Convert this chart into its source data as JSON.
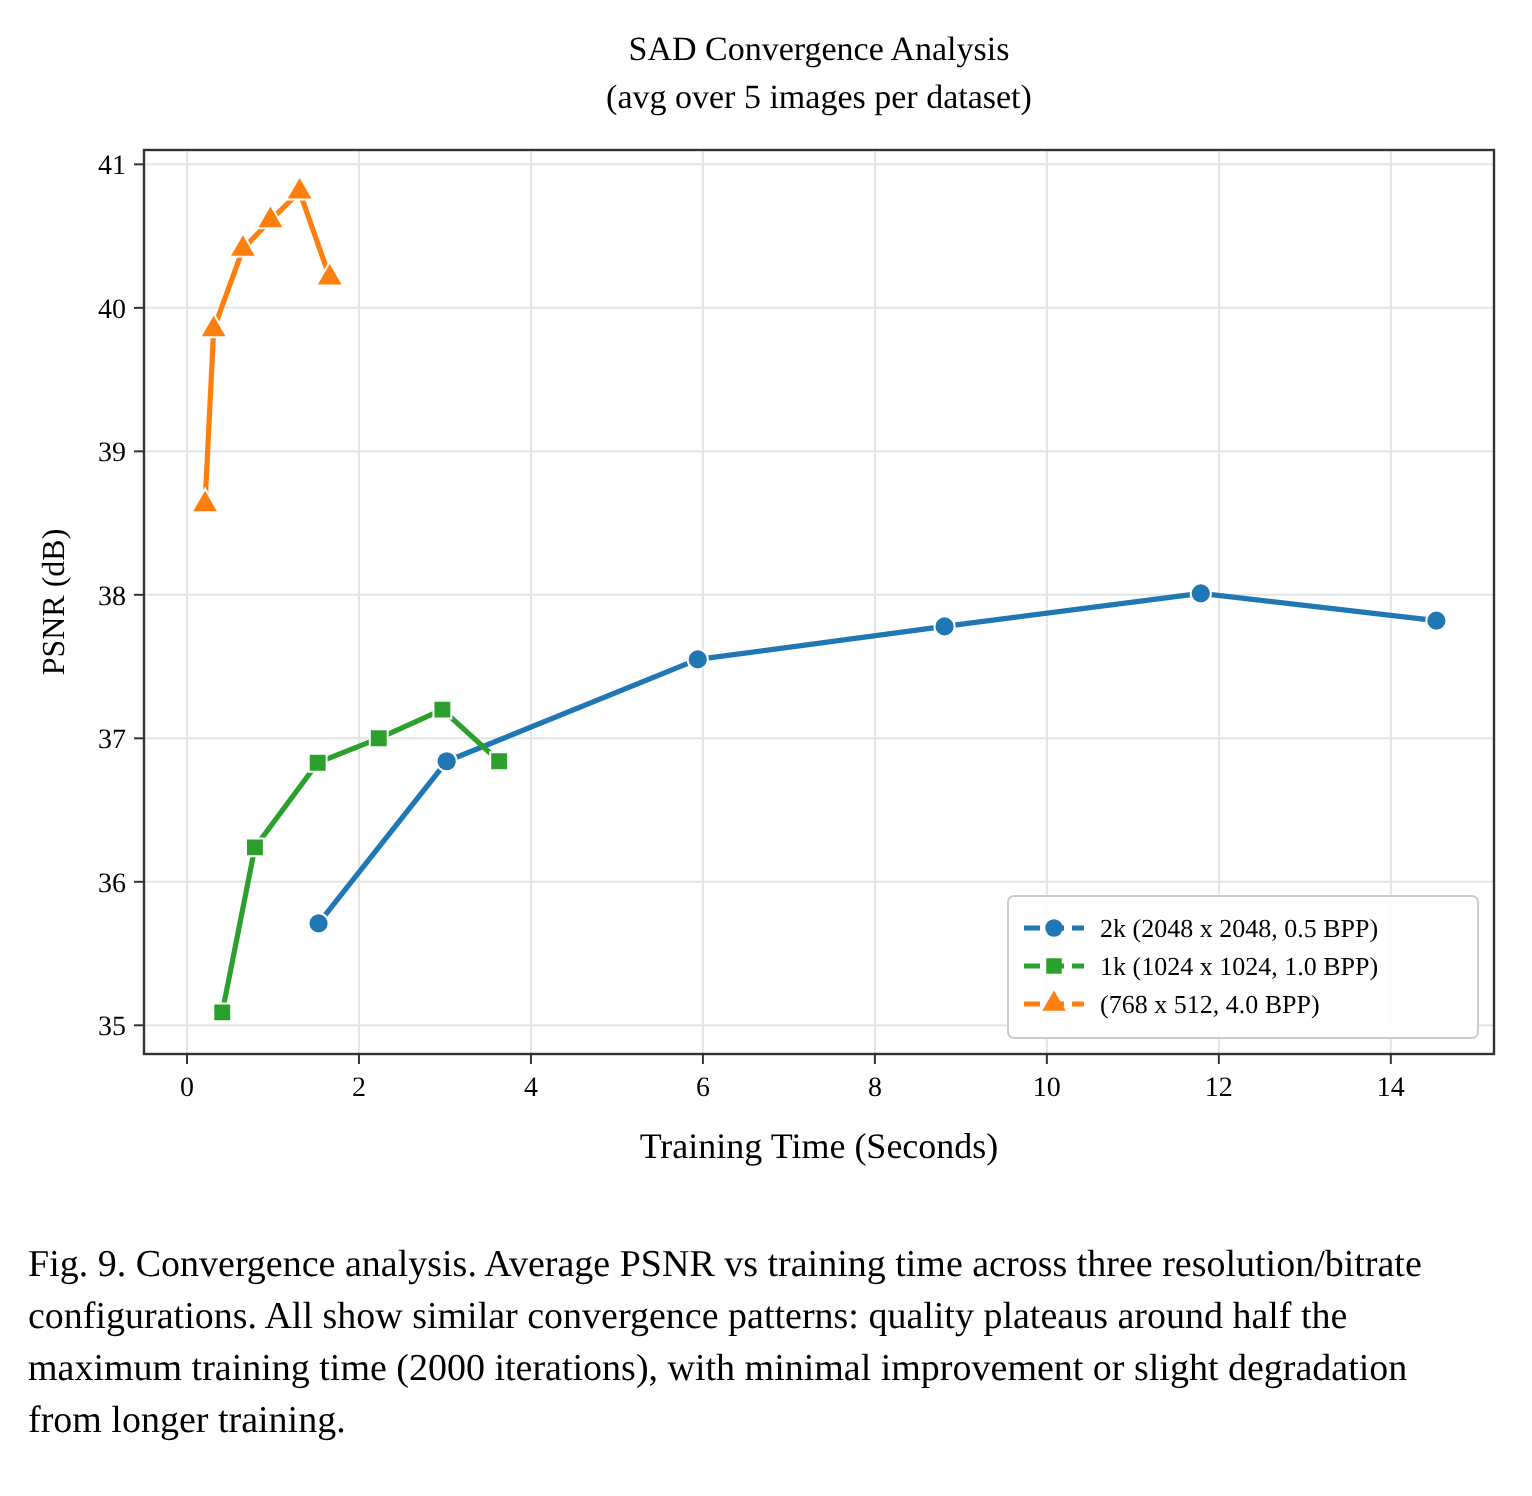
{
  "chart_data": {
    "type": "line",
    "title": "SAD Convergence Analysis",
    "subtitle": "(avg over 5 images per dataset)",
    "xlabel": "Training Time (Seconds)",
    "ylabel": "PSNR (dB)",
    "xlim": [
      -0.5,
      15.2
    ],
    "xticks": [
      0,
      2,
      4,
      6,
      8,
      10,
      12,
      14
    ],
    "ylim": [
      34.8,
      41.1
    ],
    "yticks": [
      35,
      36,
      37,
      38,
      39,
      40,
      41
    ],
    "grid": true,
    "legend": "bottom right",
    "line_style": "solid",
    "series": [
      {
        "name": "2k (2048 x 2048, 0.5 BPP)",
        "color": "#1f77b4",
        "marker": "circle",
        "x": [
          1.53,
          3.02,
          5.94,
          8.81,
          11.79,
          14.53
        ],
        "values": [
          35.71,
          36.84,
          37.55,
          37.78,
          38.01,
          37.82
        ]
      },
      {
        "name": "1k (1024 x 1024, 1.0 BPP)",
        "color": "#2ca02c",
        "marker": "square",
        "x": [
          0.41,
          0.79,
          1.52,
          2.23,
          2.97,
          3.63
        ],
        "values": [
          35.09,
          36.24,
          36.83,
          37.0,
          37.2,
          36.84
        ]
      },
      {
        "name": "(768 x 512, 4.0 BPP)",
        "color": "#ff7f0e",
        "marker": "triangle",
        "x": [
          0.21,
          0.31,
          0.65,
          0.97,
          1.31,
          1.66
        ],
        "values": [
          38.63,
          39.85,
          40.41,
          40.61,
          40.81,
          40.21
        ]
      }
    ],
    "annotations": [
      "Fig. 9.  Convergence analysis. Average PSNR vs training time across three resolution/bitrate configurations. All show similar convergence patterns: quality plateaus around half the maximum training time (2000 iterations), with minimal improvement or slight degradation from longer training."
    ]
  }
}
